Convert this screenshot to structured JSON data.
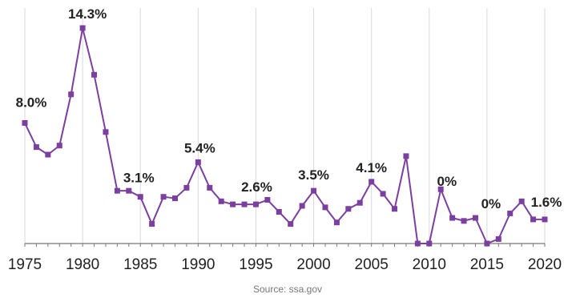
{
  "chart_data": {
    "type": "line",
    "title": "",
    "xlabel": "",
    "ylabel": "",
    "x": [
      1975,
      1976,
      1977,
      1978,
      1979,
      1980,
      1981,
      1982,
      1983,
      1984,
      1985,
      1986,
      1987,
      1988,
      1989,
      1990,
      1991,
      1992,
      1993,
      1994,
      1995,
      1996,
      1997,
      1998,
      1999,
      2000,
      2001,
      2002,
      2003,
      2004,
      2005,
      2006,
      2007,
      2008,
      2009,
      2010,
      2011,
      2012,
      2013,
      2014,
      2015,
      2016,
      2017,
      2018,
      2019,
      2020
    ],
    "series": [
      {
        "values": [
          8.0,
          6.4,
          5.9,
          6.5,
          9.9,
          14.3,
          11.2,
          7.4,
          3.5,
          3.5,
          3.1,
          1.3,
          3.1,
          3.0,
          3.7,
          5.4,
          3.7,
          2.8,
          2.6,
          2.6,
          2.6,
          2.9,
          2.1,
          1.3,
          2.5,
          3.5,
          2.4,
          1.4,
          2.3,
          2.7,
          4.1,
          3.3,
          2.3,
          5.8,
          0,
          0,
          3.6,
          1.7,
          1.5,
          1.7,
          0,
          0.3,
          2.0,
          2.8,
          1.6,
          1.6
        ],
        "color": "#7b3fa0"
      }
    ],
    "xticks": [
      1975,
      1980,
      1985,
      1990,
      1995,
      2000,
      2005,
      2010,
      2015,
      2020
    ],
    "xtick_labels": [
      "1975",
      "1980",
      "1985",
      "1990",
      "1995",
      "2000",
      "2005",
      "2010",
      "2015",
      "2020"
    ],
    "xlim": [
      1975,
      2020
    ],
    "ylim": [
      0,
      14.3
    ],
    "grid": true,
    "annotations": [
      {
        "x": 1975,
        "y": 8.0,
        "text": "8.0%"
      },
      {
        "x": 1980,
        "y": 14.3,
        "text": "14.3%"
      },
      {
        "x": 1985,
        "y": 3.1,
        "text": "3.1%"
      },
      {
        "x": 1990,
        "y": 5.4,
        "text": "5.4%"
      },
      {
        "x": 1995,
        "y": 2.6,
        "text": "2.6%"
      },
      {
        "x": 2000,
        "y": 3.5,
        "text": "3.5%"
      },
      {
        "x": 2005,
        "y": 4.1,
        "text": "4.1%"
      },
      {
        "x": 2010,
        "y": 0,
        "text": "0%"
      },
      {
        "x": 2015,
        "y": 0,
        "text": "0%"
      },
      {
        "x": 2020,
        "y": 1.6,
        "text": "1.6%"
      }
    ],
    "source": "Source: ssa.gov"
  }
}
